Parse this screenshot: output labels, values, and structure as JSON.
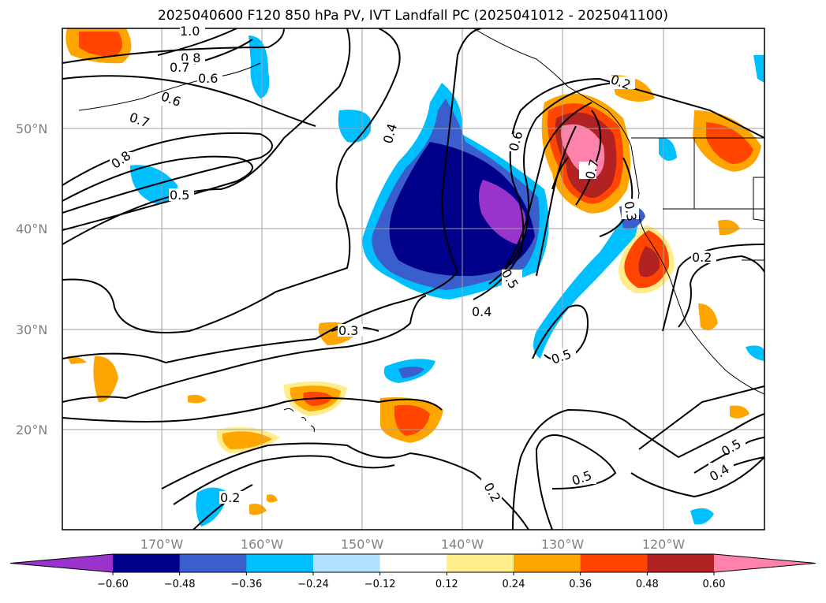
{
  "title": "2025040600 F120 850 hPa PV, IVT Landfall PC (2025041012 - 2025041100)",
  "map": {
    "lat_ticks": [
      "50°N",
      "40°N",
      "30°N",
      "20°N"
    ],
    "lon_ticks": [
      "170°W",
      "160°W",
      "150°W",
      "140°W",
      "130°W",
      "120°W"
    ]
  },
  "colorbar": {
    "levels": [
      "-0.60",
      "-0.48",
      "-0.36",
      "-0.24",
      "-0.12",
      "0.12",
      "0.24",
      "0.36",
      "0.48",
      "0.60"
    ],
    "colors": [
      "#9933cc",
      "#00008b",
      "#3a5fcd",
      "#00bfff",
      "#b0e2ff",
      "#ffffff",
      "#ffec8b",
      "#ffa500",
      "#ff4500",
      "#b22222",
      "#ff82ab"
    ]
  },
  "contour_labels": [
    "1.0",
    "0.8",
    "0.7",
    "0.6",
    "0.6",
    "0.7",
    "0.8",
    "0.5",
    "0.4",
    "0.6",
    "0.7",
    "0.3",
    "0.5",
    "0.4",
    "0.5",
    "0.3",
    "0.2",
    "0.5",
    "0.2",
    "0.5",
    "0.4",
    "0.2",
    "0.2"
  ]
}
